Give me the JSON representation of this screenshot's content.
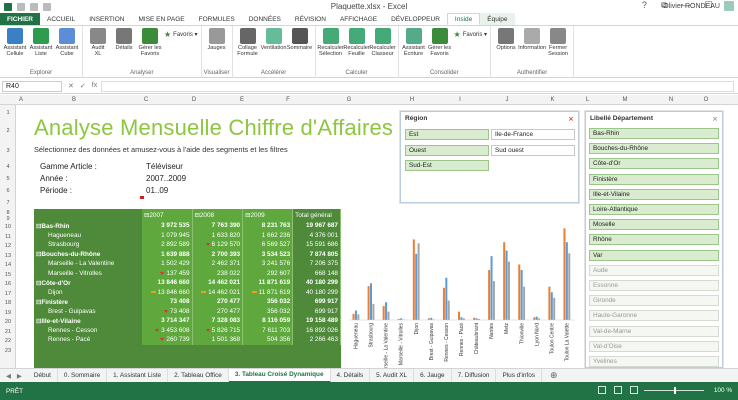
{
  "window": {
    "title": "Plaquette.xlsx - Excel",
    "controls": [
      "?",
      "⧉",
      "—",
      "☐",
      "✕"
    ]
  },
  "user": {
    "name": "Olivier RONDEAU"
  },
  "tabs": [
    "FICHIER",
    "ACCUEIL",
    "INSERTION",
    "MISE EN PAGE",
    "FORMULES",
    "DONNÉES",
    "RÉVISION",
    "AFFICHAGE",
    "DÉVELOPPEUR",
    "Inside",
    "Équipe"
  ],
  "ribbon": {
    "groups": [
      {
        "label": "Explorer",
        "buttons": [
          "Assistant\nCellule",
          "Assistant\nListe",
          "Assistant\nCube"
        ],
        "colors": [
          "#3b7fc4",
          "#2e9c4f",
          "#5b8ed6"
        ]
      },
      {
        "label": "Analyser",
        "buttons": [
          "Audit\nXL",
          "Détails",
          "Gérer les\nFavoris"
        ],
        "colors": [
          "#888",
          "#777",
          "#3a8b3a"
        ],
        "fav": "Favoris"
      },
      {
        "label": "Visualiser",
        "buttons": [
          "Jauges"
        ],
        "colors": [
          "#999"
        ]
      },
      {
        "label": "Accélérer",
        "buttons": [
          "Collage\nFormule",
          "Ventilation",
          "Sommaire"
        ],
        "colors": [
          "#666",
          "#6b9",
          "#555"
        ]
      },
      {
        "label": "Calculer",
        "buttons": [
          "Recalculer\nSélection",
          "Recalculer\nFeuille",
          "Recalculer\nClasseur"
        ],
        "colors": [
          "#4a7",
          "#4a7",
          "#4a7"
        ]
      },
      {
        "label": "Consolider",
        "buttons": [
          "Assistant\nÉcriture",
          "Gérer les\nFavoris"
        ],
        "colors": [
          "#5a8",
          "#3a8b3a"
        ],
        "fav": "Favoris"
      },
      {
        "label": "Authentifier",
        "buttons": [
          "Options",
          "Information",
          "Fermer\nSession"
        ],
        "colors": [
          "#777",
          "#aaa",
          "#888"
        ]
      }
    ]
  },
  "formula_bar": {
    "name_box": "R40",
    "icons": [
      "✕",
      "✓",
      "fx"
    ]
  },
  "columns": [
    "A",
    "B",
    "C",
    "D",
    "E",
    "F",
    "G",
    "H",
    "I",
    "J",
    "K",
    "L",
    "M",
    "N",
    "O"
  ],
  "rows": [
    "1",
    "2",
    "3",
    "4",
    "5",
    "6",
    "7",
    "8",
    "9",
    "10",
    "11",
    "12",
    "13",
    "14",
    "15",
    "16",
    "17",
    "18",
    "19",
    "20",
    "21",
    "22",
    "23"
  ],
  "report": {
    "title": "Analyse Mensuelle Chiffre d'Affaires",
    "subtitle": "Sélectionnez des données et amusez-vous à l'aide des segments et les filtres",
    "params": [
      {
        "label": "Gamme Article :",
        "value": "Téléviseur"
      },
      {
        "label": "Année :",
        "value": "2007..2009"
      },
      {
        "label": "Période :",
        "value": "01..09"
      }
    ]
  },
  "pivot": {
    "headers": [
      "2007",
      "2008",
      "2009",
      "Total général"
    ],
    "rows": [
      {
        "label": "Bas-Rhin",
        "level": 0,
        "values": [
          "3 972 535",
          "7 763 390",
          "8 231 763",
          "19 967 687"
        ],
        "marks": [
          "",
          "",
          "",
          ""
        ]
      },
      {
        "label": "Hagueneau",
        "level": 1,
        "values": [
          "1 079 945",
          "1 633 820",
          "1 662 236",
          "4 376 001"
        ],
        "marks": [
          "",
          "",
          "",
          ""
        ]
      },
      {
        "label": "Strasbourg",
        "level": 1,
        "values": [
          "2 892 589",
          "6 129 570",
          "6 569 527",
          "15 591 686"
        ],
        "marks": [
          "",
          "down",
          "",
          ""
        ]
      },
      {
        "label": "Bouches-du-Rhône",
        "level": 0,
        "values": [
          "1 639 888",
          "2 700 393",
          "3 534 523",
          "7 874 805"
        ],
        "marks": [
          "",
          "",
          "",
          ""
        ]
      },
      {
        "label": "Marseille - La Valentine",
        "level": 1,
        "values": [
          "1 502 429",
          "2 462 371",
          "3 241 576",
          "7 206 375"
        ],
        "marks": [
          "",
          "",
          "",
          ""
        ]
      },
      {
        "label": "Marseille - Vitrolles",
        "level": 1,
        "values": [
          "137 459",
          "238 022",
          "292 607",
          "668 148"
        ],
        "marks": [
          "down",
          "",
          "",
          ""
        ]
      },
      {
        "label": "Côte-d'Or",
        "level": 0,
        "values": [
          "13 846 660",
          "14 462 021",
          "11 871 619",
          "40 180 299"
        ],
        "marks": [
          "",
          "",
          "",
          ""
        ]
      },
      {
        "label": "Dijon",
        "level": 1,
        "values": [
          "13 846 660",
          "14 462 021",
          "11 871 619",
          "40 180 299"
        ],
        "marks": [
          "dash",
          "dash",
          "dash",
          ""
        ]
      },
      {
        "label": "Finistère",
        "level": 0,
        "values": [
          "73 408",
          "270 477",
          "356 032",
          "699 917"
        ],
        "marks": [
          "",
          "",
          "",
          ""
        ]
      },
      {
        "label": "Brest - Guipavas",
        "level": 1,
        "values": [
          "73 408",
          "270 477",
          "356 032",
          "699 917"
        ],
        "marks": [
          "down",
          "",
          "",
          ""
        ]
      },
      {
        "label": "Ille-et-Vilaine",
        "level": 0,
        "values": [
          "3 714 347",
          "7 328 083",
          "8 116 059",
          "19 158 489"
        ],
        "marks": [
          "",
          "",
          "",
          ""
        ]
      },
      {
        "label": "Rennes - Cesson",
        "level": 1,
        "values": [
          "3 453 608",
          "5 826 715",
          "7 611 703",
          "16 892 026"
        ],
        "marks": [
          "down",
          "down",
          "",
          ""
        ]
      },
      {
        "label": "Rennes - Pacé",
        "level": 1,
        "values": [
          "260 739",
          "1 501 368",
          "504 356",
          "2 266 463"
        ],
        "marks": [
          "down",
          "",
          "",
          ""
        ]
      }
    ]
  },
  "region_slicer": {
    "title": "Région",
    "items": [
      {
        "label": "Est",
        "state": "selected"
      },
      {
        "label": "Ile-de-France",
        "state": "plain"
      },
      {
        "label": "Ouest",
        "state": "selected"
      },
      {
        "label": "Sud ouest",
        "state": "plain"
      },
      {
        "label": "Sud-Est",
        "state": "selected"
      }
    ]
  },
  "dept_slicer": {
    "title": "Libellé Département",
    "items": [
      {
        "label": "Bas-Rhin",
        "state": "selected"
      },
      {
        "label": "Bouches-du-Rhône",
        "state": "selected"
      },
      {
        "label": "Côte-d'Or",
        "state": "selected"
      },
      {
        "label": "Finistère",
        "state": "selected"
      },
      {
        "label": "Ille-et-Vilaine",
        "state": "selected"
      },
      {
        "label": "Loire-Atlantique",
        "state": "selected"
      },
      {
        "label": "Moselle",
        "state": "selected"
      },
      {
        "label": "Rhône",
        "state": "selected"
      },
      {
        "label": "Var",
        "state": "selected"
      },
      {
        "label": "Aude",
        "state": "off"
      },
      {
        "label": "Essonne",
        "state": "off"
      },
      {
        "label": "Gironde",
        "state": "off"
      },
      {
        "label": "Haute-Garonne",
        "state": "off"
      },
      {
        "label": "Val-de-Marne",
        "state": "off"
      },
      {
        "label": "Val-d'Oise",
        "state": "off"
      },
      {
        "label": "Yvelines",
        "state": "off"
      }
    ]
  },
  "chart_data": {
    "type": "bar",
    "categories": [
      "Hagueneau",
      "Strasbourg",
      "Marseille - La Valentine",
      "Marseille - Vitrolles",
      "Dijon",
      "Brest - Guipavas",
      "Rennes - Cesson",
      "Rennes - Pacé",
      "Châteaubriant",
      "Nantes",
      "Metz",
      "Thionville",
      "Lyon Nord",
      "Toulon Centre",
      "Toulon La Valette"
    ],
    "series": [
      {
        "values": [
          1.1,
          6.1,
          2.5,
          0.2,
          14.5,
          0.3,
          5.8,
          1.5,
          0.4,
          9.0,
          14.0,
          10.0,
          0.5,
          6.0,
          16.5
        ],
        "color": "#ed7d31"
      },
      {
        "values": [
          1.7,
          6.6,
          3.2,
          0.3,
          11.9,
          0.4,
          7.6,
          0.5,
          0.3,
          11.5,
          12.5,
          9.0,
          0.6,
          5.0,
          14.0
        ],
        "color": "#5b9bd5"
      },
      {
        "values": [
          1.0,
          2.9,
          1.5,
          0.1,
          13.8,
          0.1,
          3.5,
          0.3,
          0.2,
          7.0,
          10.5,
          6.0,
          0.3,
          4.0,
          12.0
        ],
        "color": "#a5a5a5"
      }
    ],
    "ylim": [
      0,
      18
    ],
    "grid": false
  },
  "sheet_tabs": [
    "Début",
    "0. Sommaire",
    "1. Assistant Liste",
    "2. Tableau Office",
    "3. Tableau Croisé Dynamique",
    "4. Détails",
    "5. Audit XL",
    "6. Jauge",
    "7. Diffusion",
    "Plus d'infos"
  ],
  "active_sheet": 4,
  "status": {
    "left": "PRÊT",
    "zoom": "100 %"
  },
  "colors": {
    "accent": "#217346",
    "title_green": "#8dc63f",
    "pivot_dark": "#4e8a3a",
    "pivot_light": "#5fa83d"
  }
}
